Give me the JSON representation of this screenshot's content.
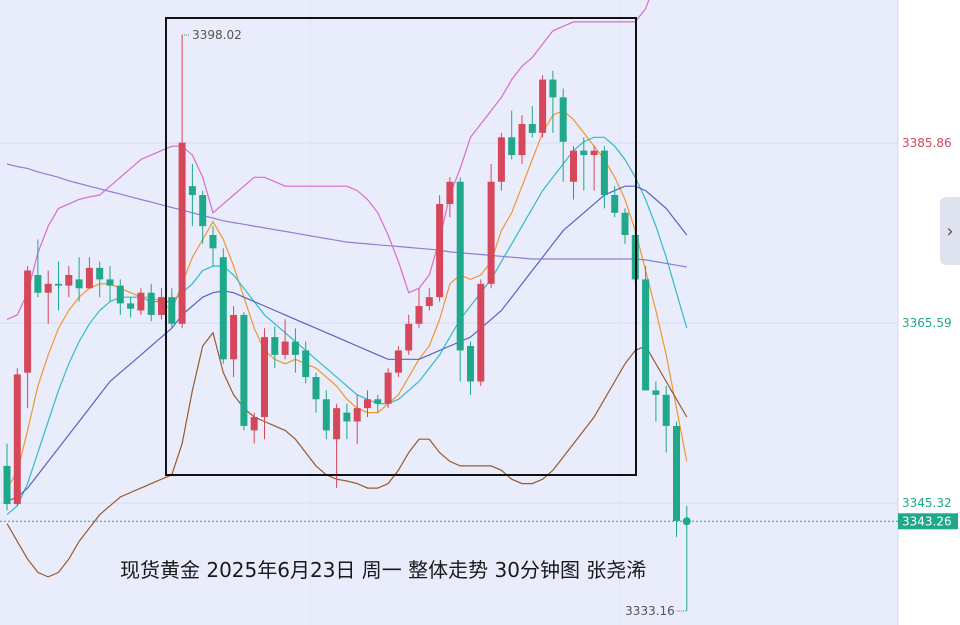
{
  "caption": "现货黄金 2025年6月23日 周一 整体走势 30分钟图 张尧浠",
  "colors": {
    "background": "#e9ecfb",
    "axis_panel": "#ffffff",
    "up": "#d6475b",
    "down": "#1fa88a",
    "ma_fast": "#f0972f",
    "ma_mid": "#2fbdc9",
    "ma_slow": "#5a63c4",
    "ma_long": "#8b7fd6",
    "boll_upper": "#d96ccc",
    "boll_lower": "#9a5a2e",
    "box": "#111111"
  },
  "icons": {
    "side_toggle": "chevron-right-icon"
  },
  "chart_data": {
    "type": "candlestick",
    "title": "",
    "y_axis_labels": [
      {
        "value": 3385.86,
        "color": "#d6475b"
      },
      {
        "value": 3365.59,
        "color": "#1fa88a"
      },
      {
        "value": 3345.32,
        "color": "#1fa88a"
      }
    ],
    "last_price": 3343.26,
    "high_marker": {
      "value": 3398.02,
      "label": "3398.02"
    },
    "low_marker": {
      "value": 3333.16,
      "label": "3333.16"
    },
    "grid": true,
    "candles": [
      [
        3349.5,
        3345.2,
        3352.0,
        3344.5
      ],
      [
        3345.2,
        3359.8,
        3360.5,
        3345.0
      ],
      [
        3360.0,
        3371.5,
        3372.0,
        3356.0
      ],
      [
        3371.0,
        3369.0,
        3375.0,
        3368.5
      ],
      [
        3369.0,
        3370.0,
        3371.5,
        3365.5
      ],
      [
        3370.0,
        3369.8,
        3372.5,
        3367.0
      ],
      [
        3369.8,
        3371.0,
        3372.0,
        3368.5
      ],
      [
        3370.5,
        3369.5,
        3373.0,
        3368.0
      ],
      [
        3369.5,
        3371.8,
        3373.0,
        3369.5
      ],
      [
        3371.8,
        3370.5,
        3372.5,
        3368.5
      ],
      [
        3370.5,
        3369.8,
        3372.0,
        3368.0
      ],
      [
        3369.8,
        3367.8,
        3370.5,
        3366.5
      ],
      [
        3367.8,
        3367.2,
        3368.5,
        3366.2
      ],
      [
        3367.0,
        3369.0,
        3369.5,
        3366.5
      ],
      [
        3369.0,
        3366.5,
        3370.0,
        3365.8
      ],
      [
        3366.5,
        3368.5,
        3369.5,
        3366.0
      ],
      [
        3368.5,
        3365.5,
        3369.5,
        3365.0
      ],
      [
        3365.5,
        3385.9,
        3398.0,
        3365.0
      ],
      [
        3381.0,
        3380.0,
        3383.5,
        3376.5
      ],
      [
        3380.0,
        3376.5,
        3380.5,
        3374.5
      ],
      [
        3375.5,
        3374.0,
        3376.5,
        3372.0
      ],
      [
        3373.0,
        3361.5,
        3374.0,
        3361.0
      ],
      [
        3361.5,
        3366.5,
        3367.5,
        3359.5
      ],
      [
        3366.5,
        3354.0,
        3366.8,
        3353.5
      ],
      [
        3353.5,
        3355.0,
        3355.5,
        3352.0
      ],
      [
        3355.0,
        3364.0,
        3365.0,
        3352.5
      ],
      [
        3364.0,
        3362.0,
        3365.2,
        3360.5
      ],
      [
        3362.0,
        3363.5,
        3366.0,
        3361.5
      ],
      [
        3363.5,
        3362.0,
        3365.0,
        3360.0
      ],
      [
        3362.5,
        3359.5,
        3363.5,
        3358.8
      ],
      [
        3359.5,
        3357.0,
        3360.0,
        3355.5
      ],
      [
        3357.0,
        3353.5,
        3358.0,
        3352.5
      ],
      [
        3352.5,
        3356.0,
        3356.5,
        3347.0
      ],
      [
        3355.5,
        3354.5,
        3356.5,
        3352.5
      ],
      [
        3354.5,
        3356.0,
        3357.5,
        3352.0
      ],
      [
        3356.0,
        3357.0,
        3358.0,
        3355.0
      ],
      [
        3357.0,
        3356.5,
        3357.5,
        3355.5
      ],
      [
        3356.5,
        3360.0,
        3360.5,
        3356.0
      ],
      [
        3360.0,
        3362.5,
        3363.0,
        3359.5
      ],
      [
        3362.5,
        3365.5,
        3366.5,
        3362.0
      ],
      [
        3365.5,
        3367.5,
        3369.5,
        3365.0
      ],
      [
        3367.5,
        3368.5,
        3369.5,
        3367.0
      ],
      [
        3368.5,
        3379.0,
        3380.0,
        3368.0
      ],
      [
        3379.0,
        3381.5,
        3382.0,
        3377.5
      ],
      [
        3381.5,
        3362.5,
        3382.0,
        3359.0
      ],
      [
        3363.0,
        3359.0,
        3363.5,
        3357.5
      ],
      [
        3359.0,
        3370.0,
        3370.5,
        3358.5
      ],
      [
        3370.0,
        3381.5,
        3383.5,
        3369.5
      ],
      [
        3381.5,
        3386.5,
        3387.0,
        3380.5
      ],
      [
        3386.5,
        3384.5,
        3389.5,
        3384.0
      ],
      [
        3384.5,
        3388.0,
        3389.0,
        3383.5
      ],
      [
        3388.0,
        3387.0,
        3390.0,
        3386.5
      ],
      [
        3387.0,
        3393.0,
        3393.5,
        3386.5
      ],
      [
        3393.0,
        3391.0,
        3394.0,
        3387.0
      ],
      [
        3391.0,
        3386.0,
        3392.0,
        3381.5
      ],
      [
        3381.5,
        3385.0,
        3385.5,
        3379.5
      ],
      [
        3385.0,
        3384.5,
        3386.5,
        3380.5
      ],
      [
        3384.5,
        3385.0,
        3385.5,
        3380.5
      ],
      [
        3385.0,
        3380.0,
        3385.5,
        3378.5
      ],
      [
        3380.0,
        3378.0,
        3381.0,
        3377.5
      ],
      [
        3378.0,
        3375.5,
        3378.5,
        3374.5
      ],
      [
        3375.5,
        3370.5,
        3376.0,
        3370.0
      ],
      [
        3370.5,
        3358.0,
        3372.0,
        3358.0
      ],
      [
        3358.0,
        3357.5,
        3359.0,
        3354.5
      ],
      [
        3357.5,
        3354.0,
        3358.5,
        3351.0
      ],
      [
        3354.0,
        3343.3,
        3354.5,
        3341.5
      ],
      [
        3343.3,
        3343.26,
        3345.0,
        3333.16
      ]
    ],
    "series": [
      {
        "key": "ma_fast",
        "values": [
          3347.0,
          3348.8,
          3353.5,
          3358.5,
          3362.0,
          3365.0,
          3367.0,
          3368.5,
          3369.5,
          3370.0,
          3370.0,
          3369.5,
          3369.0,
          3368.5,
          3368.5,
          3368.0,
          3367.0,
          3370.0,
          3373.0,
          3375.0,
          3377.0,
          3375.0,
          3372.0,
          3368.5,
          3365.0,
          3362.5,
          3361.5,
          3361.0,
          3361.5,
          3361.0,
          3360.5,
          3359.5,
          3358.5,
          3357.0,
          3356.0,
          3355.5,
          3355.5,
          3356.5,
          3357.5,
          3359.5,
          3361.5,
          3363.0,
          3366.0,
          3370.0,
          3371.0,
          3370.5,
          3371.0,
          3372.5,
          3376.0,
          3378.0,
          3381.0,
          3384.0,
          3387.0,
          3389.0,
          3389.5,
          3388.5,
          3387.0,
          3385.5,
          3384.0,
          3382.0,
          3379.5,
          3376.0,
          3371.5,
          3367.0,
          3362.0,
          3356.0,
          3350.0
        ]
      },
      {
        "key": "ma_mid",
        "values": [
          3344.0,
          3345.0,
          3347.5,
          3351.0,
          3354.5,
          3358.0,
          3361.0,
          3363.5,
          3365.5,
          3367.0,
          3368.0,
          3368.5,
          3368.5,
          3368.5,
          3368.0,
          3368.0,
          3368.0,
          3369.0,
          3370.0,
          3371.5,
          3372.0,
          3372.0,
          3371.0,
          3369.5,
          3368.0,
          3366.5,
          3365.5,
          3364.5,
          3363.5,
          3362.5,
          3361.5,
          3360.5,
          3359.5,
          3358.5,
          3357.5,
          3357.0,
          3356.5,
          3356.5,
          3357.0,
          3358.0,
          3359.0,
          3360.5,
          3362.0,
          3364.0,
          3366.0,
          3367.5,
          3369.0,
          3370.5,
          3372.5,
          3374.5,
          3376.5,
          3378.5,
          3380.5,
          3382.0,
          3383.5,
          3385.0,
          3386.0,
          3386.5,
          3386.5,
          3385.5,
          3384.0,
          3382.0,
          3379.5,
          3376.5,
          3373.0,
          3369.0,
          3365.0
        ]
      },
      {
        "key": "ma_slow",
        "values": [
          3345.5,
          3346.0,
          3347.0,
          3348.5,
          3350.0,
          3351.5,
          3353.0,
          3354.5,
          3356.0,
          3357.5,
          3359.0,
          3360.0,
          3361.0,
          3362.0,
          3363.0,
          3364.0,
          3365.0,
          3366.5,
          3367.5,
          3368.5,
          3369.0,
          3369.2,
          3369.0,
          3368.5,
          3368.0,
          3367.5,
          3367.0,
          3366.5,
          3366.0,
          3365.5,
          3365.0,
          3364.5,
          3364.0,
          3363.5,
          3363.0,
          3362.5,
          3362.0,
          3361.5,
          3361.5,
          3361.5,
          3361.5,
          3362.0,
          3362.5,
          3363.0,
          3363.5,
          3364.0,
          3365.0,
          3366.0,
          3367.0,
          3368.5,
          3370.0,
          3371.5,
          3373.0,
          3374.5,
          3376.0,
          3377.0,
          3378.0,
          3379.0,
          3380.0,
          3380.5,
          3381.0,
          3381.0,
          3380.5,
          3379.5,
          3378.5,
          3377.0,
          3375.5
        ]
      },
      {
        "key": "ma_long",
        "values": [
          3383.5,
          3383.2,
          3383.0,
          3382.6,
          3382.3,
          3382.0,
          3381.6,
          3381.3,
          3381.0,
          3380.7,
          3380.4,
          3380.1,
          3379.8,
          3379.5,
          3379.2,
          3378.9,
          3378.6,
          3378.3,
          3378.0,
          3377.7,
          3377.4,
          3377.1,
          3376.9,
          3376.7,
          3376.5,
          3376.3,
          3376.1,
          3375.9,
          3375.7,
          3375.5,
          3375.3,
          3375.1,
          3374.9,
          3374.7,
          3374.6,
          3374.5,
          3374.4,
          3374.3,
          3374.2,
          3374.1,
          3374.0,
          3373.9,
          3373.8,
          3373.6,
          3373.5,
          3373.4,
          3373.3,
          3373.2,
          3373.1,
          3373.0,
          3372.9,
          3372.8,
          3372.8,
          3372.8,
          3372.8,
          3372.8,
          3372.8,
          3372.8,
          3372.8,
          3372.8,
          3372.8,
          3372.8,
          3372.7,
          3372.5,
          3372.3,
          3372.1,
          3371.9
        ]
      },
      {
        "key": "boll_upper",
        "values": [
          3366.0,
          3366.5,
          3369.0,
          3373.5,
          3376.5,
          3378.5,
          3379.0,
          3379.5,
          3379.8,
          3380.0,
          3381.0,
          3382.0,
          3383.0,
          3384.0,
          3384.5,
          3385.0,
          3385.5,
          3385.5,
          3384.5,
          3382.0,
          3378.0,
          3379.0,
          3380.0,
          3381.0,
          3382.0,
          3382.0,
          3381.5,
          3381.0,
          3381.0,
          3381.0,
          3381.0,
          3381.0,
          3381.0,
          3381.0,
          3380.5,
          3379.5,
          3378.0,
          3375.5,
          3372.5,
          3369.0,
          3369.5,
          3371.0,
          3375.0,
          3380.0,
          3383.0,
          3386.5,
          3388.0,
          3389.5,
          3391.0,
          3393.0,
          3394.5,
          3395.5,
          3397.0,
          3398.5,
          3399.0,
          3399.5,
          3399.5,
          3399.5,
          3399.5,
          3399.5,
          3399.5,
          3399.5,
          3401.0,
          3404.0,
          3405.5,
          3408.0,
          3410.0
        ]
      },
      {
        "key": "boll_lower",
        "values": [
          3343.0,
          3341.0,
          3339.0,
          3337.5,
          3337.0,
          3337.5,
          3339.0,
          3341.0,
          3342.5,
          3344.0,
          3345.0,
          3346.0,
          3346.5,
          3347.0,
          3347.5,
          3348.0,
          3348.5,
          3352.0,
          3358.0,
          3363.0,
          3364.5,
          3360.0,
          3357.5,
          3356.0,
          3355.0,
          3354.5,
          3354.0,
          3353.5,
          3352.5,
          3351.0,
          3349.5,
          3348.5,
          3348.0,
          3347.8,
          3347.5,
          3347.0,
          3347.0,
          3347.5,
          3349.0,
          3351.0,
          3352.5,
          3352.5,
          3351.0,
          3350.0,
          3349.5,
          3349.5,
          3349.5,
          3349.5,
          3349.0,
          3348.0,
          3347.5,
          3347.5,
          3348.0,
          3349.0,
          3350.5,
          3352.0,
          3353.5,
          3355.0,
          3357.0,
          3359.0,
          3361.0,
          3362.5,
          3363.0,
          3361.0,
          3359.0,
          3357.0,
          3355.0
        ]
      }
    ]
  }
}
